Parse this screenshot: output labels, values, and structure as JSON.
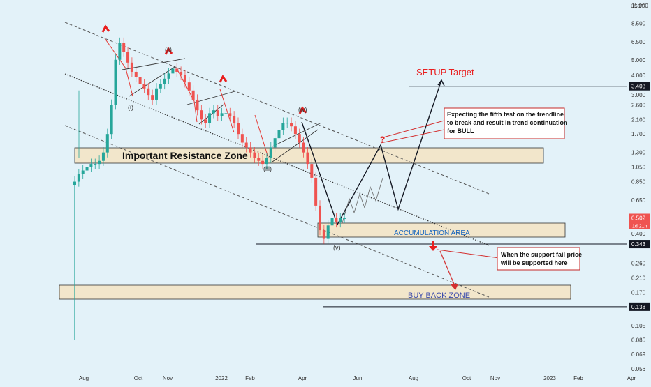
{
  "chart_data": {
    "type": "candlestick",
    "title": "",
    "yscale": "log",
    "ylim": [
      0.05,
      11.0
    ],
    "y_unit": "USDT",
    "y_ticks": [
      "11.000",
      "8.500",
      "6.500",
      "5.000",
      "4.000",
      "3.000",
      "2.600",
      "2.100",
      "1.700",
      "1.300",
      "1.050",
      "0.850",
      "0.650",
      "0.502",
      "0.400",
      "0.343",
      "0.260",
      "0.210",
      "0.170",
      "0.138",
      "0.105",
      "0.085",
      "0.069",
      "0.056"
    ],
    "x_ticks": [
      "Aug",
      "Oct",
      "Nov",
      "2022",
      "Feb",
      "Apr",
      "Jun",
      "Aug",
      "Oct",
      "Nov",
      "2023",
      "Feb",
      "Apr"
    ],
    "price_labels": [
      {
        "value": "3.403",
        "color": "#131722"
      },
      {
        "value": "0.502",
        "color": "#ef5350",
        "sub": "1d 21h"
      },
      {
        "value": "0.343",
        "color": "#131722"
      },
      {
        "value": "0.138",
        "color": "#131722"
      }
    ],
    "close_approx": [
      0.85,
      0.95,
      1.0,
      1.05,
      1.1,
      1.1,
      1.15,
      1.3,
      1.7,
      2.6,
      5.0,
      6.4,
      5.6,
      4.8,
      4.2,
      3.9,
      3.5,
      3.3,
      3.0,
      2.8,
      3.3,
      3.5,
      3.8,
      4.1,
      4.4,
      4.2,
      4.0,
      3.6,
      3.2,
      2.8,
      2.4,
      2.1,
      2.0,
      2.3,
      2.4,
      2.2,
      2.3,
      2.3,
      2.2,
      2.0,
      1.7,
      1.5,
      1.4,
      1.3,
      1.2,
      1.15,
      1.1,
      1.2,
      1.4,
      1.6,
      1.8,
      2.0,
      2.0,
      1.9,
      1.7,
      1.5,
      1.3,
      1.1,
      0.9,
      0.6,
      0.42,
      0.37,
      0.45,
      0.5,
      0.47,
      0.5,
      0.5
    ],
    "annotations": {
      "resistance_zone": "Important Resistance Zone",
      "accumulation": "ACCUMULATION AREA",
      "buy_back": "BUY BACK ZONE",
      "target": "SETUP Target",
      "note1": [
        "Expecting the fifth test on the trendline",
        "to break and result in trend continuation",
        "for BULL"
      ],
      "note2": [
        "When the support fail price",
        "will be supported here"
      ],
      "question": "?",
      "waves": [
        "(i)",
        "(ii)",
        "(iii)",
        "(iv)",
        "(v)"
      ]
    },
    "colors": {
      "up": "#26a69a",
      "down": "#ef5350",
      "background": "#e3f2f9",
      "zone": "#f2e6cb",
      "red": "#e91e1e",
      "blue": "#2962ff"
    }
  }
}
